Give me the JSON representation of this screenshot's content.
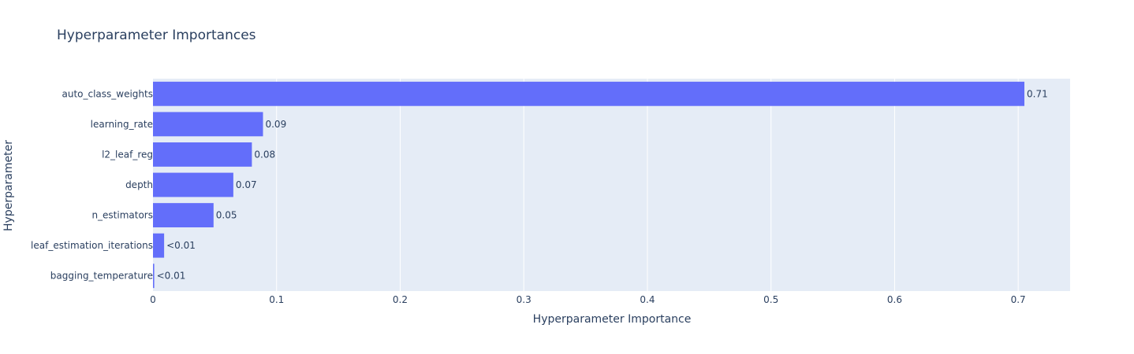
{
  "colors": {
    "plot_bg": "#e5ecf6",
    "grid": "#ffffff",
    "bar": "#636efa",
    "text": "#2a3f5f"
  },
  "chart_data": {
    "type": "bar",
    "orientation": "horizontal",
    "title": "Hyperparameter Importances",
    "xlabel": "Hyperparameter Importance",
    "ylabel": "Hyperparameter",
    "xlim": [
      0,
      0.742
    ],
    "xticks": [
      0,
      0.1,
      0.2,
      0.3,
      0.4,
      0.5,
      0.6,
      0.7
    ],
    "xtick_labels": [
      "0",
      "0.1",
      "0.2",
      "0.3",
      "0.4",
      "0.5",
      "0.6",
      "0.7"
    ],
    "grid": true,
    "categories": [
      "auto_class_weights",
      "learning_rate",
      "l2_leaf_reg",
      "depth",
      "n_estimators",
      "leaf_estimation_iterations",
      "bagging_temperature"
    ],
    "values": [
      0.705,
      0.089,
      0.08,
      0.065,
      0.049,
      0.009,
      0.001
    ],
    "labels": [
      "0.71",
      "0.09",
      "0.08",
      "0.07",
      "0.05",
      "<0.01",
      "<0.01"
    ]
  }
}
